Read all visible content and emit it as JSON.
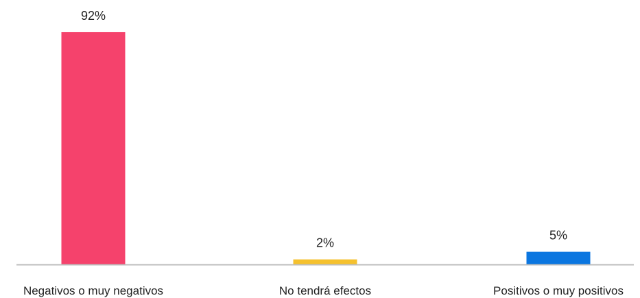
{
  "chart_data": {
    "type": "bar",
    "categories": [
      "Negativos o muy negativos",
      "No tendrá efectos",
      "Positivos o muy positivos"
    ],
    "values": [
      92,
      2,
      5
    ],
    "value_labels": [
      "92%",
      "2%",
      "5%"
    ],
    "colors": [
      "#F5426C",
      "#F5C12E",
      "#0B76E0"
    ],
    "unit": "%",
    "ylim": [
      0,
      100
    ],
    "grid": false,
    "legend": "none"
  },
  "colors": {
    "baseline": "#BDBDBD",
    "text": "#222222",
    "background": "#FFFFFF"
  }
}
